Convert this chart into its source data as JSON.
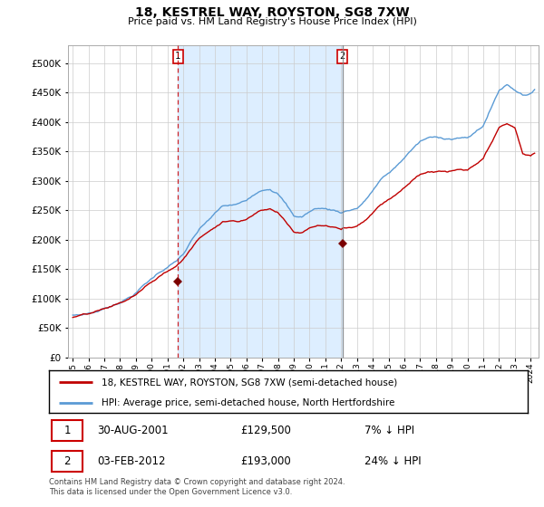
{
  "title": "18, KESTREL WAY, ROYSTON, SG8 7XW",
  "subtitle": "Price paid vs. HM Land Registry's House Price Index (HPI)",
  "sale1_date": "30-AUG-2001",
  "sale1_price": 129500,
  "sale1_label": "7% ↓ HPI",
  "sale2_date": "03-FEB-2012",
  "sale2_price": 193000,
  "sale2_label": "24% ↓ HPI",
  "legend_line1": "18, KESTREL WAY, ROYSTON, SG8 7XW (semi-detached house)",
  "legend_line2": "HPI: Average price, semi-detached house, North Hertfordshire",
  "footer": "Contains HM Land Registry data © Crown copyright and database right 2024.\nThis data is licensed under the Open Government Licence v3.0.",
  "hpi_color": "#5b9bd5",
  "price_color": "#c00000",
  "marker_color": "#7b0000",
  "vline1_color": "#cc0000",
  "vline2_color": "#808080",
  "shade_color": "#ddeeff",
  "ylim": [
    0,
    530000
  ],
  "ytick_max": 500000,
  "yticks": [
    0,
    50000,
    100000,
    150000,
    200000,
    250000,
    300000,
    350000,
    400000,
    450000,
    500000
  ],
  "sale1_x": 2001.667,
  "sale2_x": 2012.083,
  "xmin": 1994.7,
  "xmax": 2024.5
}
